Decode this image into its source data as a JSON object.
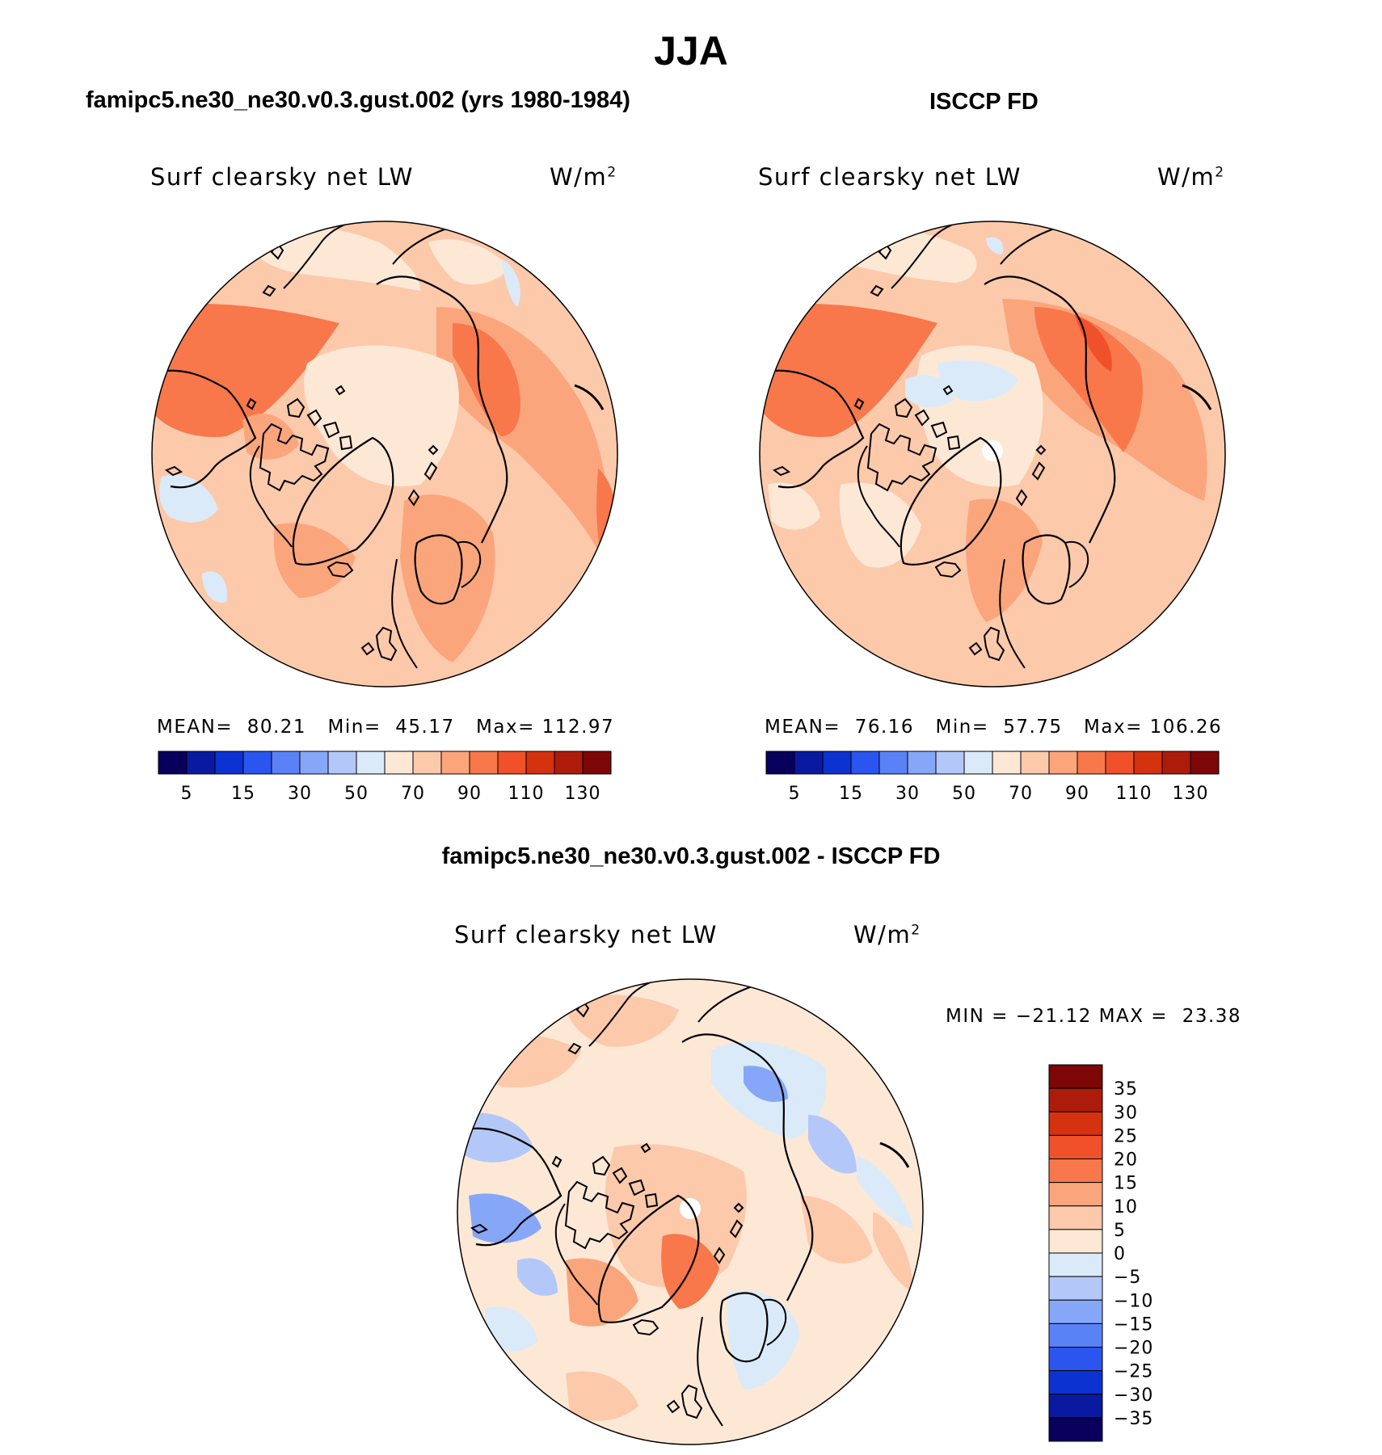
{
  "title": "JJA",
  "panels": [
    {
      "title": "famipc5.ne30_ne30.v0.3.gust.002 (yrs 1980-1984)",
      "variable": "Surf clearsky net LW",
      "units_base": "W/m",
      "units_exp": "2",
      "stats": {
        "mean_label": "MEAN=",
        "mean": "80.21",
        "min_label": "Min=",
        "min": "45.17",
        "max_label": "Max=",
        "max": "112.97"
      }
    },
    {
      "title": "ISCCP FD",
      "variable": "Surf clearsky net LW",
      "units_base": "W/m",
      "units_exp": "2",
      "stats": {
        "mean_label": "MEAN=",
        "mean": "76.16",
        "min_label": "Min=",
        "min": "57.75",
        "max_label": "Max=",
        "max": "106.26"
      }
    },
    {
      "title": "famipc5.ne30_ne30.v0.3.gust.002 - ISCCP FD",
      "variable": "Surf clearsky net LW",
      "units_base": "W/m",
      "units_exp": "2",
      "stats_text": "MIN = −21.12 MAX =  23.38"
    }
  ],
  "colorbar_main": {
    "labels": [
      "5",
      "15",
      "30",
      "50",
      "70",
      "90",
      "110",
      "130"
    ],
    "colors": [
      "#08005c",
      "#0a1aa0",
      "#0c32d2",
      "#2a55ef",
      "#5a82f7",
      "#86a7f8",
      "#b3c8f8",
      "#daeaf8",
      "#fde8d6",
      "#fcc9ab",
      "#fba57c",
      "#f8774b",
      "#f0512a",
      "#d5320f",
      "#ad1c0a",
      "#7d0606"
    ]
  },
  "colorbar_diff": {
    "labels": [
      "35",
      "30",
      "25",
      "20",
      "15",
      "10",
      "5",
      "0",
      "−5",
      "−10",
      "−15",
      "−20",
      "−25",
      "−30",
      "−35"
    ],
    "colors": [
      "#7d0606",
      "#ad1c0a",
      "#d5320f",
      "#f0512a",
      "#f8774b",
      "#fba57c",
      "#fcc9ab",
      "#fde8d6",
      "#daeaf8",
      "#b3c8f8",
      "#86a7f8",
      "#5a82f7",
      "#2a55ef",
      "#0c32d2",
      "#0a1aa0",
      "#08005c"
    ]
  }
}
